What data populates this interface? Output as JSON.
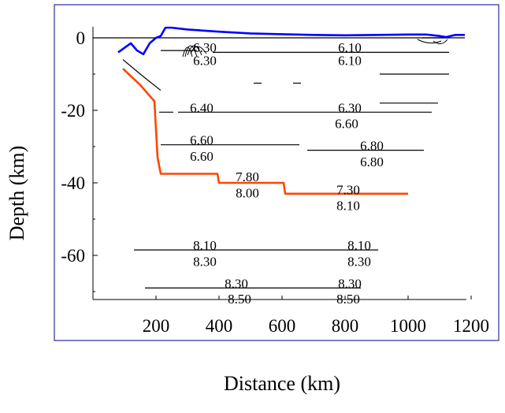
{
  "chart_data": {
    "type": "line",
    "xlabel": "Distance (km)",
    "ylabel": "Depth (km)",
    "xlim": [
      -20,
      1200
    ],
    "ylim": [
      -72,
      3
    ],
    "x_ticks": [
      {
        "value": 200,
        "label": "200"
      },
      {
        "value": 400,
        "label": "400"
      },
      {
        "value": 600,
        "label": "600"
      },
      {
        "value": 800,
        "label": "800"
      },
      {
        "value": 1000,
        "label": "1000"
      },
      {
        "value": 1200,
        "label": "1200"
      }
    ],
    "y_ticks": [
      {
        "value": 0,
        "label": "0"
      },
      {
        "value": -20,
        "label": "-20"
      },
      {
        "value": -40,
        "label": "-40"
      },
      {
        "value": -60,
        "label": "-60"
      }
    ],
    "series": [
      {
        "color": "#0000ff",
        "x": [
          80,
          120,
          140,
          160,
          180,
          200,
          215,
          230,
          250,
          300,
          400,
          500,
          600,
          700,
          800,
          900,
          1000,
          1060,
          1100,
          1120,
          1150,
          1180
        ],
        "y": [
          -4,
          -1.5,
          -3.5,
          -4.5,
          -1.5,
          0,
          0.5,
          2.8,
          2.8,
          2.3,
          1.7,
          1.2,
          1.0,
          0.8,
          0.7,
          0.8,
          0.9,
          0.9,
          0.5,
          0.2,
          0.8,
          0.8
        ]
      },
      {
        "color": "#ff4500",
        "x": [
          95,
          150,
          195,
          205,
          215,
          230,
          395,
          400,
          605,
          610,
          1000
        ],
        "y": [
          -8.5,
          -13,
          -17.5,
          -33,
          -37.5,
          -37.5,
          -37.5,
          -40,
          -40,
          -43,
          -43
        ]
      },
      {
        "color": "#000000",
        "x": [
          95,
          150,
          215
        ],
        "y": [
          -6,
          -10,
          -14.5
        ]
      }
    ],
    "boundaries": [
      {
        "x": [
          0,
          1180
        ],
        "y": [
          0,
          0
        ]
      },
      {
        "x": [
          215,
          330
        ],
        "y": [
          -3.5,
          -3.5
        ]
      },
      {
        "x": [
          380,
          1130
        ],
        "y": [
          -4,
          -4
        ]
      },
      {
        "x": [
          1045,
          1130
        ],
        "y": [
          0,
          0
        ]
      },
      {
        "x": [
          510,
          535
        ],
        "y": [
          -12.5,
          -12.5
        ]
      },
      {
        "x": [
          635,
          660
        ],
        "y": [
          -12.5,
          -12.5
        ]
      },
      {
        "x": [
          910,
          1130
        ],
        "y": [
          -10,
          -10
        ]
      },
      {
        "x": [
          210,
          255
        ],
        "y": [
          -20.5,
          -20.5
        ]
      },
      {
        "x": [
          270,
          1075
        ],
        "y": [
          -20.5,
          -20.5
        ]
      },
      {
        "x": [
          910,
          1095
        ],
        "y": [
          -18,
          -18
        ]
      },
      {
        "x": [
          215,
          655
        ],
        "y": [
          -29.5,
          -29.5
        ]
      },
      {
        "x": [
          680,
          1050
        ],
        "y": [
          -31,
          -31
        ]
      },
      {
        "x": [
          130,
          905
        ],
        "y": [
          -58.5,
          -58.5
        ]
      },
      {
        "x": [
          165,
          850
        ],
        "y": [
          -69,
          -69
        ]
      }
    ],
    "velocity_labels": [
      {
        "text": "6.30",
        "x": 355,
        "y": -2.6
      },
      {
        "text": "6.30",
        "x": 355,
        "y": -6.2
      },
      {
        "text": "6.10",
        "x": 815,
        "y": -2.6
      },
      {
        "text": "6.10",
        "x": 815,
        "y": -6.2
      },
      {
        "text": "6.40",
        "x": 345,
        "y": -19.2
      },
      {
        "text": "6.30",
        "x": 815,
        "y": -19.2
      },
      {
        "text": "6.60",
        "x": 805,
        "y": -23.6
      },
      {
        "text": "6.60",
        "x": 345,
        "y": -28.2
      },
      {
        "text": "6.60",
        "x": 345,
        "y": -32.6
      },
      {
        "text": "6.80",
        "x": 885,
        "y": -29.7
      },
      {
        "text": "6.80",
        "x": 885,
        "y": -34.1
      },
      {
        "text": "7.80",
        "x": 490,
        "y": -38.3
      },
      {
        "text": "8.00",
        "x": 490,
        "y": -42.7
      },
      {
        "text": "7.30",
        "x": 810,
        "y": -41.8
      },
      {
        "text": "8.10",
        "x": 810,
        "y": -46.2
      },
      {
        "text": "8.10",
        "x": 355,
        "y": -57.2
      },
      {
        "text": "8.30",
        "x": 355,
        "y": -61.6
      },
      {
        "text": "8.10",
        "x": 845,
        "y": -57.2
      },
      {
        "text": "8.30",
        "x": 845,
        "y": -61.6
      },
      {
        "text": "8.30",
        "x": 455,
        "y": -67.7
      },
      {
        "text": "8.50",
        "x": 465,
        "y": -72.0
      },
      {
        "text": "8.30",
        "x": 815,
        "y": -67.7
      },
      {
        "text": "8.50",
        "x": 810,
        "y": -72.0
      }
    ],
    "grid": false,
    "legend": "none"
  }
}
